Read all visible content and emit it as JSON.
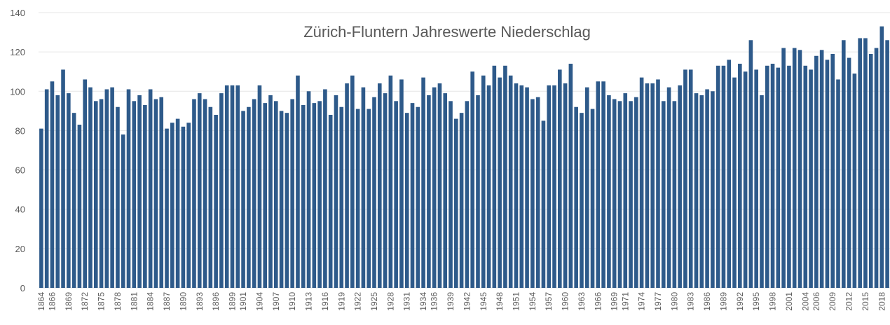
{
  "chart_data": {
    "type": "bar",
    "title": "Zürich-Fluntern Jahreswerte Niederschlag",
    "categories": [
      "1864",
      null,
      "1866",
      null,
      null,
      "1869",
      null,
      null,
      "1872",
      null,
      null,
      "1875",
      null,
      null,
      "1878",
      null,
      null,
      "1881",
      null,
      null,
      "1884",
      null,
      null,
      "1887",
      null,
      null,
      "1890",
      null,
      null,
      "1893",
      null,
      null,
      "1896",
      null,
      null,
      "1899",
      null,
      "1901",
      null,
      null,
      "1904",
      null,
      null,
      "1907",
      null,
      null,
      "1910",
      null,
      null,
      "1913",
      null,
      null,
      "1916",
      null,
      null,
      "1919",
      null,
      null,
      "1922",
      null,
      null,
      "1925",
      null,
      null,
      "1928",
      null,
      null,
      "1931",
      null,
      null,
      "1934",
      null,
      "1936",
      null,
      null,
      "1939",
      null,
      null,
      "1942",
      null,
      null,
      "1945",
      null,
      null,
      "1948",
      null,
      null,
      "1951",
      null,
      null,
      "1954",
      null,
      null,
      "1957",
      null,
      null,
      "1960",
      null,
      null,
      "1963",
      null,
      null,
      "1966",
      null,
      null,
      "1969",
      null,
      "1971",
      null,
      null,
      "1974",
      null,
      null,
      "1977",
      null,
      null,
      "1980",
      null,
      null,
      "1983",
      null,
      null,
      "1986",
      null,
      null,
      "1989",
      null,
      null,
      "1992",
      null,
      null,
      "1995",
      null,
      null,
      "1998",
      null,
      null,
      "2001",
      null,
      null,
      "2004",
      null,
      "2006",
      null,
      null,
      "2009",
      null,
      null,
      "2012",
      null,
      null,
      "2015",
      null,
      null,
      "2018",
      null
    ],
    "values": [
      81,
      101,
      105,
      98,
      111,
      99,
      89,
      83,
      106,
      102,
      95,
      96,
      101,
      102,
      92,
      78,
      101,
      95,
      98,
      93,
      101,
      96,
      97,
      81,
      84,
      86,
      82,
      84,
      96,
      99,
      96,
      92,
      88,
      99,
      103,
      103,
      103,
      90,
      92,
      96,
      103,
      94,
      98,
      95,
      90,
      89,
      96,
      108,
      93,
      100,
      94,
      95,
      101,
      88,
      98,
      92,
      104,
      108,
      91,
      102,
      91,
      97,
      104,
      99,
      108,
      95,
      106,
      89,
      94,
      92,
      107,
      98,
      102,
      104,
      99,
      95,
      86,
      89,
      95,
      110,
      98,
      108,
      103,
      113,
      107,
      113,
      108,
      104,
      103,
      102,
      96,
      97,
      85,
      103,
      103,
      111,
      104,
      114,
      92,
      89,
      102,
      91,
      105,
      105,
      98,
      96,
      95,
      99,
      95,
      97,
      107,
      104,
      104,
      106,
      95,
      102,
      95,
      103,
      111,
      111,
      99,
      98,
      101,
      100,
      113,
      113,
      116,
      107,
      114,
      110,
      126,
      111,
      98,
      113,
      114,
      112,
      122,
      113,
      122,
      121,
      113,
      111,
      118,
      121,
      116,
      119,
      106,
      126,
      117,
      109,
      127,
      127,
      119,
      122,
      133,
      126
    ],
    "color": "#2e5a8a",
    "ylim": [
      0,
      140
    ],
    "yticks": [
      0,
      20,
      40,
      60,
      80,
      100,
      120,
      140
    ],
    "grid": true
  }
}
